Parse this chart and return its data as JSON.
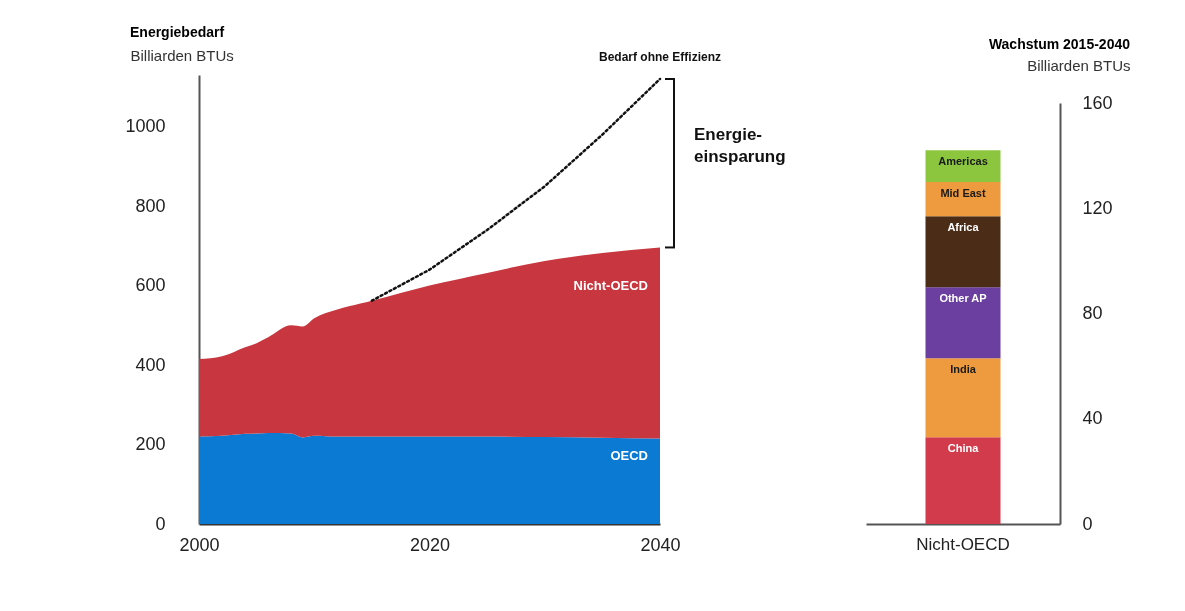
{
  "chart_data": [
    {
      "type": "area",
      "title": "Energiebedarf",
      "ylabel": "Billiarden BTUs",
      "stacked": true,
      "x": [
        2000,
        2002,
        2004,
        2005,
        2006,
        2008,
        2009,
        2010,
        2012,
        2014,
        2015,
        2020,
        2025,
        2030,
        2035,
        2040
      ],
      "series": [
        {
          "name": "OECD",
          "color": "#0a7ad3",
          "values": [
            220,
            222,
            227,
            228,
            229,
            228,
            218,
            222,
            220,
            220,
            220,
            220,
            220,
            219,
            217,
            215
          ]
        },
        {
          "name": "Nicht-OECD",
          "color": "#c8363f",
          "values": [
            195,
            200,
            218,
            227,
            241,
            272,
            279,
            296,
            320,
            335,
            342,
            380,
            412,
            443,
            465,
            481
          ]
        },
        {
          "name": "Bedarf ohne Effizienz",
          "type": "line",
          "color": "#111111",
          "line_style": "dotted",
          "x": [
            2015,
            2020,
            2025,
            2030,
            2035,
            2040
          ],
          "values": [
            562,
            640,
            740,
            850,
            980,
            1120
          ]
        }
      ],
      "annotations": [
        "Energie-einsparung"
      ],
      "xlim": [
        2000,
        2040
      ],
      "xticks": [
        2000,
        2020,
        2040
      ],
      "ylim": [
        0,
        1130
      ],
      "yticks": [
        0,
        200,
        400,
        600,
        800,
        1000
      ],
      "grid": false,
      "legend": false
    },
    {
      "type": "bar",
      "title": "Wachstum 2015-2040",
      "ylabel": "Billiarden BTUs",
      "stacked": true,
      "categories": [
        "Nicht-OECD"
      ],
      "series": [
        {
          "name": "China",
          "color": "#d13b4b",
          "values": [
            33
          ]
        },
        {
          "name": "India",
          "color": "#ee9a3e",
          "values": [
            30
          ]
        },
        {
          "name": "Other AP",
          "color": "#6a3fa0",
          "values": [
            27
          ]
        },
        {
          "name": "Africa",
          "color": "#4a2c17",
          "values": [
            27
          ]
        },
        {
          "name": "Mid East",
          "color": "#ee9a3e",
          "values": [
            13
          ]
        },
        {
          "name": "Americas",
          "color": "#8cc63f",
          "values": [
            12
          ]
        }
      ],
      "ylim": [
        0,
        160
      ],
      "yticks": [
        0,
        40,
        80,
        120,
        160
      ],
      "grid": false,
      "legend": false
    }
  ]
}
